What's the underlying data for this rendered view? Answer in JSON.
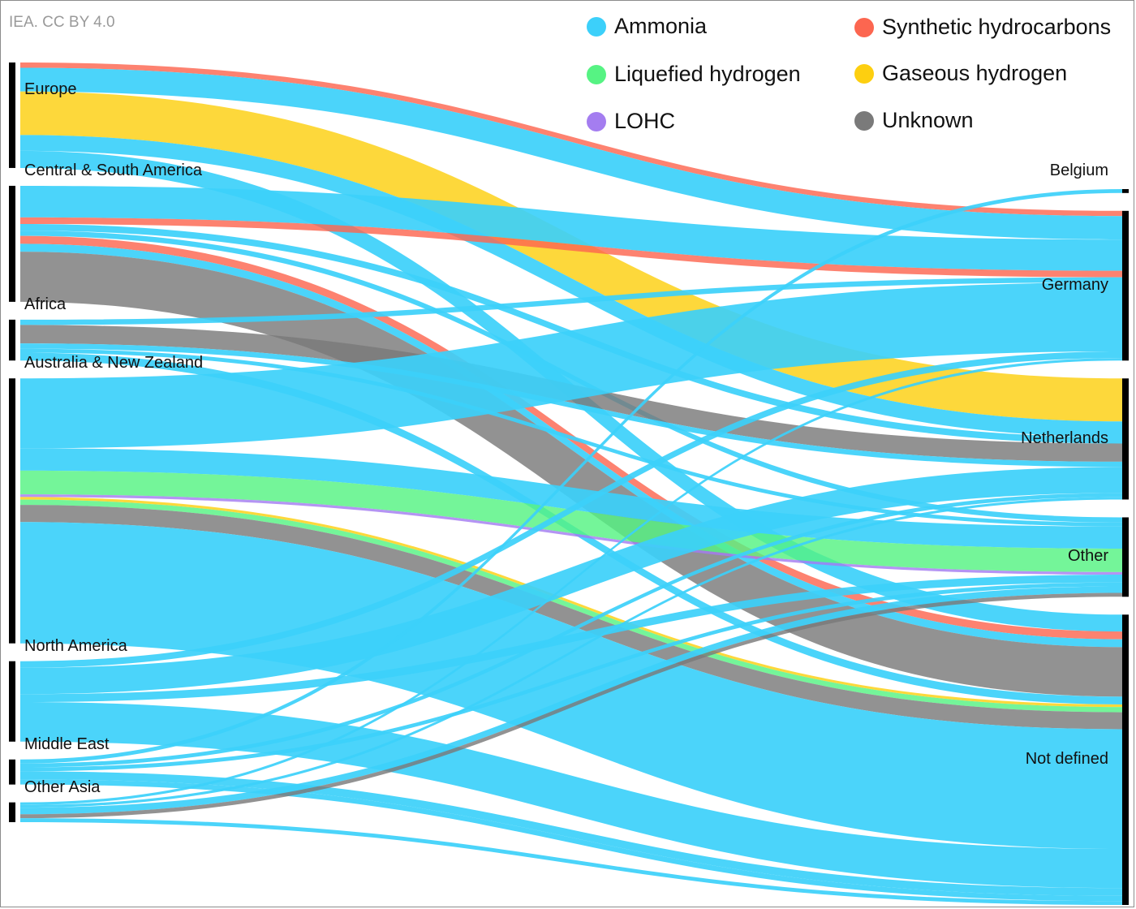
{
  "credit": "IEA. CC BY 4.0",
  "colors": {
    "ammonia": "#3cd0fa",
    "liquefied": "#56f383",
    "lohc": "#a47df0",
    "synthetic": "#fc6650",
    "gaseous": "#fdcf10",
    "unknown": "#7a7a7a",
    "node_bar": "#000000"
  },
  "chart_data": {
    "type": "sankey",
    "carriers": [
      {
        "key": "ammonia",
        "label": "Ammonia"
      },
      {
        "key": "liquefied",
        "label": "Liquefied hydrogen"
      },
      {
        "key": "lohc",
        "label": "LOHC"
      },
      {
        "key": "synthetic",
        "label": "Synthetic hydrocarbons"
      },
      {
        "key": "gaseous",
        "label": "Gaseous hydrogen"
      },
      {
        "key": "unknown",
        "label": "Unknown"
      }
    ],
    "sources": [
      {
        "key": "eur",
        "label": "Europe"
      },
      {
        "key": "csa",
        "label": "Central & South America"
      },
      {
        "key": "afr",
        "label": "Africa"
      },
      {
        "key": "anz",
        "label": "Australia & New Zealand"
      },
      {
        "key": "nam",
        "label": "North America"
      },
      {
        "key": "mde",
        "label": "Middle East"
      },
      {
        "key": "oas",
        "label": "Other Asia"
      }
    ],
    "targets": [
      {
        "key": "bel",
        "label": "Belgium"
      },
      {
        "key": "deu",
        "label": "Germany"
      },
      {
        "key": "nld",
        "label": "Netherlands"
      },
      {
        "key": "oth",
        "label": "Other"
      },
      {
        "key": "und",
        "label": "Not defined"
      }
    ],
    "flows": [
      {
        "source": "eur",
        "target": "deu",
        "carrier": "synthetic",
        "value": 0.4
      },
      {
        "source": "eur",
        "target": "deu",
        "carrier": "ammonia",
        "value": 1.8
      },
      {
        "source": "eur",
        "target": "nld",
        "carrier": "gaseous",
        "value": 3.3
      },
      {
        "source": "eur",
        "target": "nld",
        "carrier": "ammonia",
        "value": 1.2
      },
      {
        "source": "eur",
        "target": "und",
        "carrier": "ammonia",
        "value": 1.3
      },
      {
        "source": "csa",
        "target": "deu",
        "carrier": "ammonia",
        "value": 2.4
      },
      {
        "source": "csa",
        "target": "deu",
        "carrier": "synthetic",
        "value": 0.5
      },
      {
        "source": "csa",
        "target": "nld",
        "carrier": "ammonia",
        "value": 0.5
      },
      {
        "source": "csa",
        "target": "oth",
        "carrier": "ammonia",
        "value": 0.4
      },
      {
        "source": "csa",
        "target": "und",
        "carrier": "synthetic",
        "value": 0.6
      },
      {
        "source": "csa",
        "target": "und",
        "carrier": "ammonia",
        "value": 0.6
      },
      {
        "source": "csa",
        "target": "und",
        "carrier": "unknown",
        "value": 3.8
      },
      {
        "source": "afr",
        "target": "deu",
        "carrier": "ammonia",
        "value": 0.4
      },
      {
        "source": "afr",
        "target": "nld",
        "carrier": "unknown",
        "value": 1.4
      },
      {
        "source": "afr",
        "target": "nld",
        "carrier": "ammonia",
        "value": 0.4
      },
      {
        "source": "afr",
        "target": "oth",
        "carrier": "ammonia",
        "value": 0.3
      },
      {
        "source": "afr",
        "target": "und",
        "carrier": "ammonia",
        "value": 0.6
      },
      {
        "source": "anz",
        "target": "deu",
        "carrier": "ammonia",
        "value": 5.3
      },
      {
        "source": "anz",
        "target": "oth",
        "carrier": "ammonia",
        "value": 1.7
      },
      {
        "source": "anz",
        "target": "oth",
        "carrier": "liquefied",
        "value": 1.8
      },
      {
        "source": "anz",
        "target": "oth",
        "carrier": "lohc",
        "value": 0.2
      },
      {
        "source": "anz",
        "target": "und",
        "carrier": "gaseous",
        "value": 0.2
      },
      {
        "source": "anz",
        "target": "und",
        "carrier": "liquefied",
        "value": 0.4
      },
      {
        "source": "anz",
        "target": "und",
        "carrier": "unknown",
        "value": 1.3
      },
      {
        "source": "anz",
        "target": "und",
        "carrier": "ammonia",
        "value": 9.2
      },
      {
        "source": "nam",
        "target": "deu",
        "carrier": "ammonia",
        "value": 0.5
      },
      {
        "source": "nam",
        "target": "nld",
        "carrier": "ammonia",
        "value": 2.0
      },
      {
        "source": "nam",
        "target": "oth",
        "carrier": "ammonia",
        "value": 0.6
      },
      {
        "source": "nam",
        "target": "und",
        "carrier": "ammonia",
        "value": 3.0
      },
      {
        "source": "mde",
        "target": "bel",
        "carrier": "ammonia",
        "value": 0.3
      },
      {
        "source": "mde",
        "target": "nld",
        "carrier": "ammonia",
        "value": 0.3
      },
      {
        "source": "mde",
        "target": "oth",
        "carrier": "ammonia",
        "value": 0.3
      },
      {
        "source": "mde",
        "target": "und",
        "carrier": "ammonia",
        "value": 0.6
      },
      {
        "source": "mde",
        "target": "und",
        "carrier": "ammonia",
        "value": 0.4
      },
      {
        "source": "oas",
        "target": "deu",
        "carrier": "ammonia",
        "value": 0.2
      },
      {
        "source": "oas",
        "target": "nld",
        "carrier": "ammonia",
        "value": 0.2
      },
      {
        "source": "oas",
        "target": "oth",
        "carrier": "ammonia",
        "value": 0.5
      },
      {
        "source": "oas",
        "target": "oth",
        "carrier": "unknown",
        "value": 0.3
      },
      {
        "source": "oas",
        "target": "und",
        "carrier": "ammonia",
        "value": 0.3
      }
    ]
  }
}
